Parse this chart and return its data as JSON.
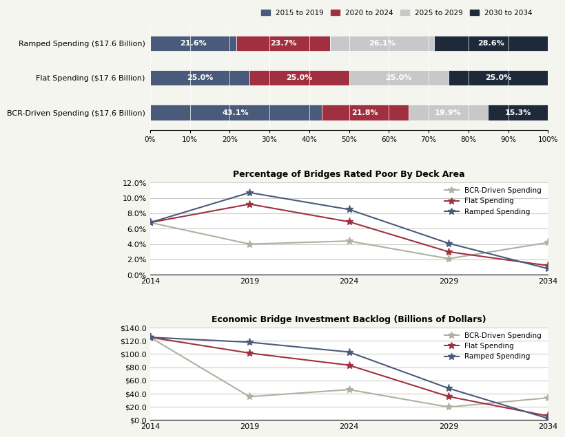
{
  "bar_categories": [
    "Ramped Spending ($17.6 Billion)",
    "Flat Spending ($17.6 Billion)",
    "BCR-Driven Spending ($17.6 Billion)"
  ],
  "bar_values": {
    "2015-2019": [
      21.6,
      25.0,
      43.1
    ],
    "2020-2024": [
      23.7,
      25.0,
      21.8
    ],
    "2025-2029": [
      26.1,
      25.0,
      19.9
    ],
    "2030-2034": [
      28.6,
      25.0,
      15.3
    ]
  },
  "bar_colors": {
    "2015-2019": "#4a5a7a",
    "2020-2024": "#a03040",
    "2025-2029": "#c8c8c8",
    "2030-2034": "#1e2a3a"
  },
  "bar_legend_labels": [
    "2015 to 2019",
    "2020 to 2024",
    "2025 to 2029",
    "2030 to 2034"
  ],
  "line_years": [
    2014,
    2019,
    2024,
    2029,
    2034
  ],
  "bridge_poor": {
    "BCR-Driven Spending": [
      6.8,
      4.0,
      4.4,
      2.1,
      4.2
    ],
    "Flat Spending": [
      6.8,
      9.2,
      6.9,
      3.0,
      1.2
    ],
    "Ramped Spending": [
      6.8,
      10.7,
      8.5,
      4.1,
      0.8
    ]
  },
  "backlog": {
    "BCR-Driven Spending": [
      125.4,
      35.3,
      46.0,
      19.5,
      33.5
    ],
    "Flat Spending": [
      125.4,
      101.4,
      83.0,
      35.5,
      5.9
    ],
    "Ramped Spending": [
      125.4,
      117.9,
      103.0,
      48.0,
      2.2
    ]
  },
  "line_colors": {
    "BCR-Driven Spending": "#b0b0a0",
    "Flat Spending": "#a03040",
    "Ramped Spending": "#4a5a7a"
  },
  "bridge_title": "Percentage of Bridges Rated Poor By Deck Area",
  "backlog_title": "Economic Bridge Investment Backlog (Billions of Dollars)",
  "bridge_ylim": [
    0.0,
    0.12
  ],
  "bridge_yticks": [
    0.0,
    0.02,
    0.04,
    0.06,
    0.08,
    0.1,
    0.12
  ],
  "backlog_ylim": [
    0,
    140
  ],
  "backlog_yticks": [
    0,
    20,
    40,
    60,
    80,
    100,
    120,
    140
  ],
  "background_color": "#f5f5f0",
  "plot_background": "#ffffff"
}
